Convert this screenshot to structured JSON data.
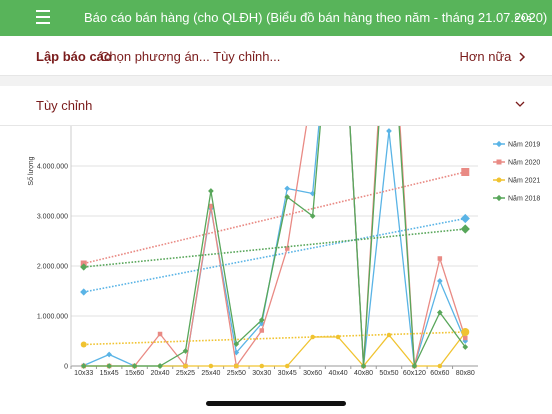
{
  "header": {
    "title": "Báo cáo bán hàng (cho QLĐH) (Biểu đồ bán hàng theo năm - tháng 21.07.2020)",
    "menu_icon": "hamburger-menu-icon",
    "more_icon": "more-dots-icon",
    "color": "#58b45a"
  },
  "report_bar": {
    "label": "Lập báo cáo",
    "options": "Chọn phương án... Tùy chỉnh...",
    "more": "Hơn nữa"
  },
  "custom_section": {
    "label": "Tùy chỉnh",
    "chevron_icon": "chevron-down-icon"
  },
  "chart_data": {
    "type": "line",
    "ylabel": "Số lượng",
    "ylim": [
      0,
      4800000
    ],
    "yticks": [
      0,
      1000000,
      2000000,
      3000000,
      4000000
    ],
    "ytick_labels": [
      "0",
      "1.000.000",
      "2.000.000",
      "3.000.000",
      "4.000.000"
    ],
    "categories": [
      "10x33",
      "15x45",
      "15x60",
      "20x40",
      "25x25",
      "25x40",
      "25x50",
      "30x30",
      "30x45",
      "30x60",
      "40x40",
      "40x80",
      "50x50",
      "60x120",
      "60x60",
      "80x80"
    ],
    "legend_position": "right",
    "grid": true,
    "trendlines": true,
    "series": [
      {
        "name": "Năm 2019",
        "color": "#5ab4e6",
        "marker": "diamond",
        "values": [
          10000,
          230000,
          0,
          0,
          0,
          3150000,
          270000,
          850000,
          3550000,
          3450000,
          9000000,
          0,
          4700000,
          0,
          1700000,
          500000
        ],
        "trend": [
          1480000,
          2950000
        ]
      },
      {
        "name": "Năm 2020",
        "color": "#e98a84",
        "marker": "square",
        "values": [
          0,
          0,
          0,
          640000,
          0,
          3200000,
          0,
          710000,
          2350000,
          5600000,
          9000000,
          0,
          8500000,
          0,
          2150000,
          560000
        ],
        "trend": [
          2050000,
          3880000
        ]
      },
      {
        "name": "Năm 2021",
        "color": "#f0c330",
        "marker": "circle",
        "values": [
          0,
          0,
          0,
          0,
          0,
          0,
          0,
          0,
          0,
          580000,
          580000,
          0,
          620000,
          0,
          0,
          670000
        ],
        "trend": [
          430000,
          680000
        ]
      },
      {
        "name": "Năm 2018",
        "color": "#58a65a",
        "marker": "diamond",
        "values": [
          0,
          0,
          0,
          0,
          300000,
          3500000,
          440000,
          920000,
          3380000,
          3000000,
          9000000,
          0,
          8000000,
          0,
          1070000,
          380000
        ],
        "trend": [
          1980000,
          2740000
        ]
      }
    ]
  }
}
